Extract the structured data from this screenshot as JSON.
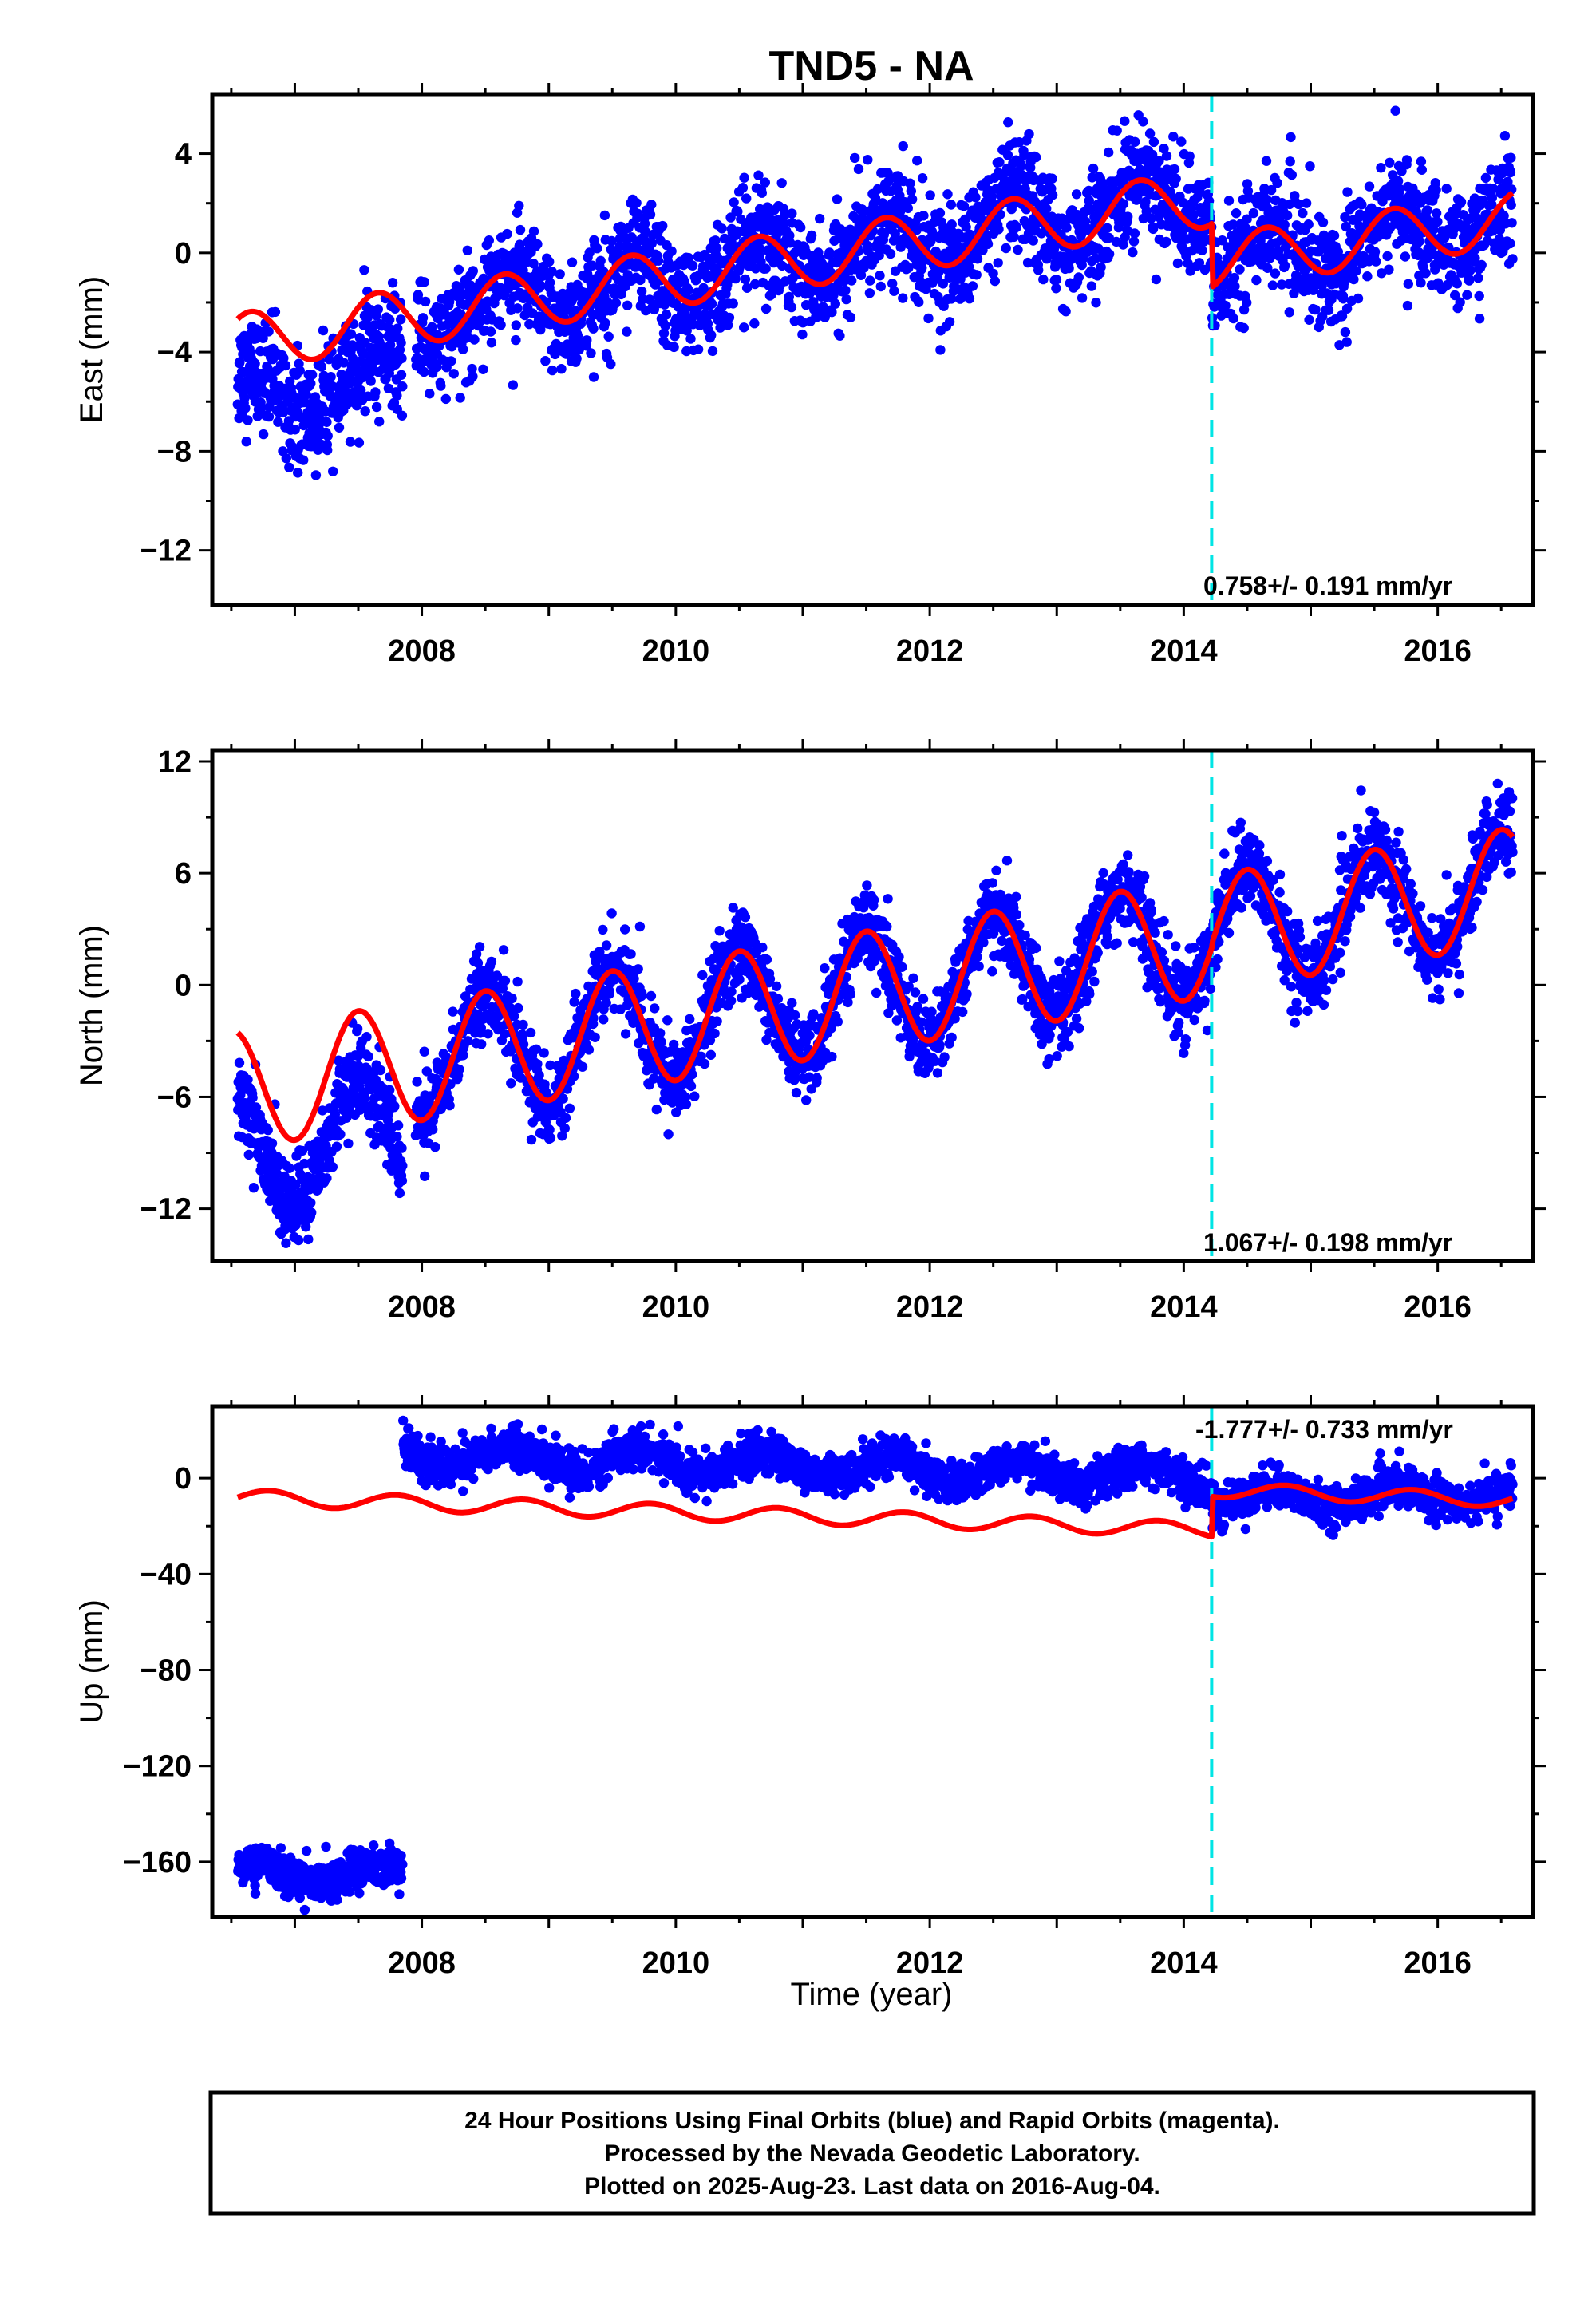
{
  "title": "TND5 - NA",
  "xlabel": "Time (year)",
  "colors": {
    "final_orbits": "#0000ff",
    "model": "#ff0000",
    "offset_marker": "#00e5e5",
    "frame": "#000000"
  },
  "footer": {
    "line1": "24 Hour Positions Using Final Orbits (blue) and Rapid Orbits (magenta).",
    "line2": "Processed by the Nevada Geodetic Laboratory.",
    "line3": "Plotted on 2025-Aug-23. Last data on 2016-Aug-04."
  },
  "chart_data": [
    {
      "type": "scatter",
      "name": "east",
      "ylabel": "East (mm)",
      "rate_label": "0.758+/- 0.191 mm/yr",
      "xlim": [
        2006.35,
        2016.75
      ],
      "ylim": [
        -14.2,
        6.4
      ],
      "xticks": [
        2008,
        2010,
        2012,
        2014,
        2016
      ],
      "yticks": [
        4,
        0,
        -4,
        -8,
        -12
      ],
      "offset_epoch": 2014.22,
      "data_start": 2006.55,
      "data_end": 2016.59,
      "model": {
        "rate": 0.758,
        "pre_offset": {
          "t0": 2006.55,
          "v0": -3.6,
          "amp": 1.15,
          "phase_peak": 0.65
        },
        "post_offset": {
          "t0": 2014.22,
          "v0": -0.4,
          "amp": 1.1,
          "phase_peak": 0.65
        }
      },
      "scatter": {
        "noise_sd": 1.1,
        "early_shift": {
          "until": 2007.85,
          "shift": -2.3
        }
      }
    },
    {
      "type": "scatter",
      "name": "north",
      "ylabel": "North (mm)",
      "rate_label": "1.067+/- 0.198 mm/yr",
      "xlim": [
        2006.35,
        2016.75
      ],
      "ylim": [
        -14.8,
        12.6
      ],
      "xticks": [
        2008,
        2010,
        2012,
        2014,
        2016
      ],
      "yticks": [
        12,
        6,
        0,
        -6,
        -12
      ],
      "offset_epoch": 2014.22,
      "data_start": 2006.55,
      "data_end": 2016.59,
      "model": {
        "rate": 1.067,
        "pre_offset": {
          "t0": 2006.55,
          "v0": -5.6,
          "amp": 3.2,
          "phase_peak": 0.5
        },
        "post_offset": {
          "t0": 2014.22,
          "v0": 2.8,
          "amp": 3.1,
          "phase_peak": 0.5
        }
      },
      "scatter": {
        "noise_sd": 1.1,
        "early_shift": {
          "until": 2007.85,
          "shift": -3.5
        }
      }
    },
    {
      "type": "scatter",
      "name": "up",
      "ylabel": "Up (mm)",
      "rate_label": "-1.777+/- 0.733 mm/yr",
      "xlim": [
        2006.35,
        2016.75
      ],
      "ylim": [
        -183,
        30
      ],
      "xticks": [
        2008,
        2010,
        2012,
        2014,
        2016
      ],
      "yticks": [
        0,
        -40,
        -80,
        -120,
        -160
      ],
      "offset_epoch": 2014.22,
      "data_start": 2006.55,
      "data_end": 2016.59,
      "model": {
        "rate": -1.777,
        "pre_offset": {
          "t0": 2006.55,
          "v0": -8.0,
          "amp": 3.2,
          "phase_peak": 0.8
        },
        "post_offset": {
          "t0": 2014.22,
          "v0": -5.0,
          "amp": 3.0,
          "phase_peak": 0.8
        }
      },
      "scatter": {
        "noise_sd": 4.0,
        "early_block": {
          "until": 2007.85,
          "level": -165,
          "amp": 4,
          "noise_sd": 4
        },
        "mid_level": {
          "from": 2007.85,
          "until": 2014.22,
          "start": 10,
          "end": 0,
          "amp": 5
        },
        "late_level": {
          "from": 2014.22,
          "until": 2016.6,
          "start": -9,
          "end": -6,
          "amp": 4
        }
      }
    }
  ]
}
